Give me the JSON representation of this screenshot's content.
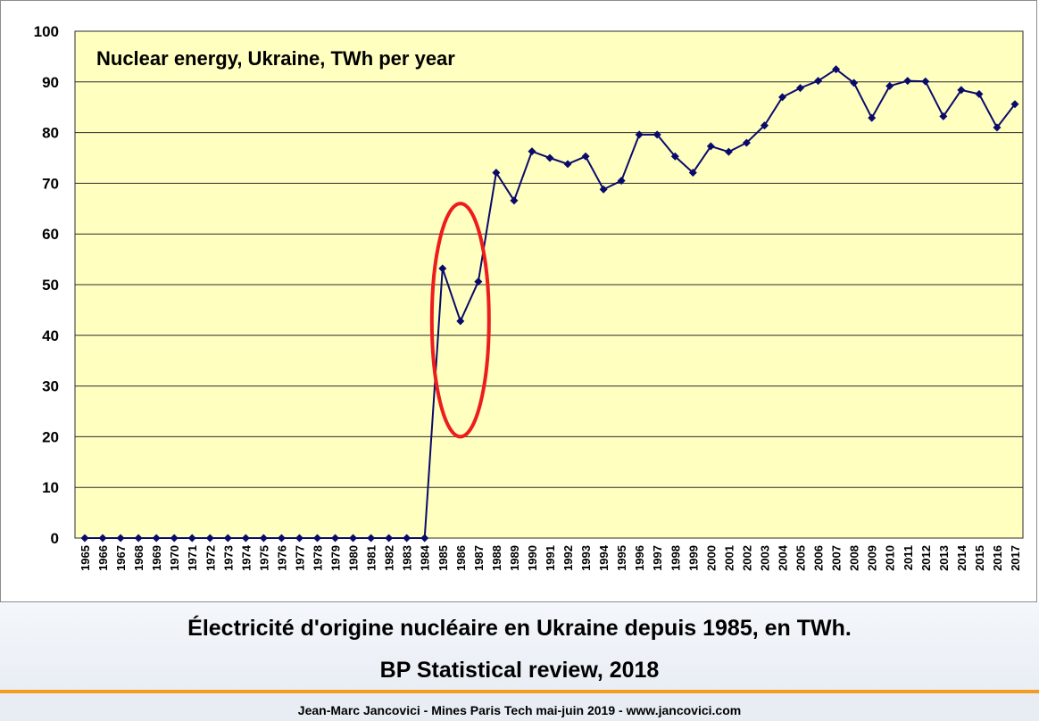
{
  "chart_data": {
    "type": "line",
    "title": "Nuclear energy, Ukraine, TWh per year",
    "xlabel": "",
    "ylabel": "",
    "ylim": [
      0,
      100
    ],
    "yticks": [
      0,
      10,
      20,
      30,
      40,
      50,
      60,
      70,
      80,
      90,
      100
    ],
    "grid": true,
    "legend": "none",
    "x": [
      "1965",
      "1966",
      "1967",
      "1968",
      "1969",
      "1970",
      "1971",
      "1972",
      "1973",
      "1974",
      "1975",
      "1976",
      "1977",
      "1978",
      "1979",
      "1980",
      "1981",
      "1982",
      "1983",
      "1984",
      "1985",
      "1986",
      "1987",
      "1988",
      "1989",
      "1990",
      "1991",
      "1992",
      "1993",
      "1994",
      "1995",
      "1996",
      "1997",
      "1998",
      "1999",
      "2000",
      "2001",
      "2002",
      "2003",
      "2004",
      "2005",
      "2006",
      "2007",
      "2008",
      "2009",
      "2010",
      "2011",
      "2012",
      "2013",
      "2014",
      "2015",
      "2016",
      "2017"
    ],
    "series": [
      {
        "values": [
          0,
          0,
          0,
          0,
          0,
          0,
          0,
          0,
          0,
          0,
          0,
          0,
          0,
          0,
          0,
          0,
          0,
          0,
          0,
          0,
          53.2,
          42.8,
          50.6,
          72.1,
          66.6,
          76.3,
          75.0,
          73.8,
          75.3,
          68.8,
          70.5,
          79.6,
          79.6,
          75.3,
          72.1,
          77.3,
          76.2,
          78.0,
          81.4,
          87.0,
          88.8,
          90.2,
          92.5,
          89.8,
          82.9,
          89.2,
          90.2,
          90.1,
          83.2,
          88.4,
          87.6,
          81.0,
          85.6
        ],
        "color": "#0a0a6b"
      }
    ],
    "annotation": {
      "type": "ellipse",
      "around": [
        "1985",
        "1986",
        "1987"
      ],
      "color": "#ee1c1c"
    },
    "colors": {
      "plot_background": "#ffffc0",
      "gridline": "#2b2b2b"
    }
  },
  "caption": {
    "line1": "Électricité d'origine nucléaire en Ukraine depuis 1985, en TWh.",
    "line2": "BP Statistical review, 2018"
  },
  "footer": {
    "text": "Jean-Marc Jancovici - Mines Paris Tech mai-juin 2019 - www.jancovici.com"
  },
  "colors": {
    "accent_rule": "#f39c1f",
    "caption_band": "#eaeff5"
  }
}
